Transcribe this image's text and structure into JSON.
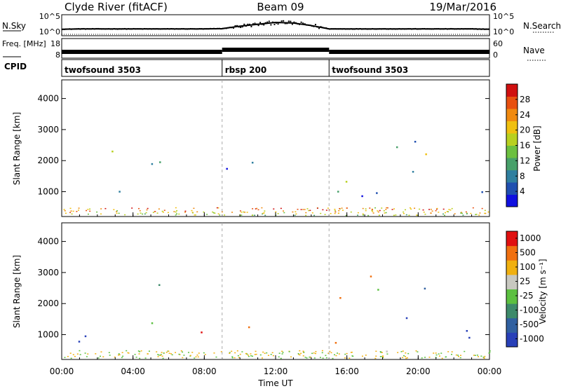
{
  "header": {
    "station": "Clyde River (fitACF)",
    "beam": "Beam 09",
    "date": "19/Mar/2016"
  },
  "chart_data": [
    {
      "type": "line",
      "panel": "sky-noise",
      "ylabel_left": "N.Sky",
      "ylabel_right": "N.Search",
      "y_ticks_left": [
        "10^5",
        "10^0"
      ],
      "y_ticks_right": [
        "10^5",
        "10^0"
      ],
      "series": [
        {
          "name": "N.Sky",
          "style": "solid-dots",
          "x_hours": [
            0,
            1,
            2,
            3,
            4,
            5,
            6,
            7,
            8,
            9,
            10,
            11,
            12,
            13,
            14,
            15,
            16,
            17,
            18,
            19,
            20,
            21,
            22,
            23,
            24
          ],
          "log10_values": [
            1.2,
            1.3,
            1.3,
            1.3,
            1.3,
            1.3,
            1.3,
            1.3,
            1.3,
            1.4,
            2.2,
            2.8,
            3.4,
            3.2,
            2.4,
            1.3,
            1.3,
            1.3,
            1.3,
            1.3,
            1.3,
            1.3,
            1.3,
            1.3,
            1.2
          ]
        },
        {
          "name": "N.Search",
          "style": "dotted",
          "x_hours": [
            0,
            24
          ],
          "log10_values": [
            0,
            0
          ]
        }
      ]
    },
    {
      "type": "line",
      "panel": "frequency",
      "ylabel_left": "Freq. [MHz]",
      "ylabel_right": "Nave",
      "y_ticks_left": [
        "18",
        "8"
      ],
      "y_ticks_right": [
        "60",
        "0"
      ],
      "series": [
        {
          "name": "Freq",
          "x_hours": [
            0,
            9,
            9,
            15,
            15,
            24
          ],
          "values": [
            10.5,
            10.5,
            12.0,
            12.0,
            10.5,
            10.5
          ]
        },
        {
          "name": "Nave",
          "style": "dotted",
          "x_hours": [
            9,
            15
          ],
          "values": [
            30,
            30
          ]
        }
      ]
    },
    {
      "type": "table",
      "panel": "cpid",
      "label": "CPID",
      "segments": [
        {
          "name": "twofsound 3503",
          "start_hour": 0,
          "end_hour": 9
        },
        {
          "name": "rbsp 200",
          "start_hour": 9,
          "end_hour": 15
        },
        {
          "name": "twofsound 3503",
          "start_hour": 15,
          "end_hour": 24
        }
      ]
    },
    {
      "type": "heatmap",
      "panel": "power",
      "ylabel": "Slant Range [km]",
      "ylim": [
        200,
        4600
      ],
      "y_ticks": [
        1000,
        2000,
        3000,
        4000
      ],
      "colorbar_label": "Power [dB]",
      "colorbar_ticks": [
        4,
        8,
        12,
        16,
        20,
        24,
        28
      ],
      "colorbar_colors": [
        "#1010e0",
        "#2050b0",
        "#2f7f9f",
        "#48a06a",
        "#6cc040",
        "#b8d020",
        "#f0c010",
        "#f08a10",
        "#e85010",
        "#d01010"
      ]
    },
    {
      "type": "heatmap",
      "panel": "velocity",
      "ylabel": "Slant Range [km]",
      "ylim": [
        200,
        4600
      ],
      "y_ticks": [
        1000,
        2000,
        3000,
        4000
      ],
      "colorbar_label": "Velocity [m s⁻¹]",
      "colorbar_ticks": [
        "1000",
        "500",
        "100",
        "25",
        "-25",
        "-100",
        "-500",
        "-1000"
      ],
      "colorbar_colors": [
        "#2840b8",
        "#3060a0",
        "#3d8a6a",
        "#5cc040",
        "#c8c8c0",
        "#f0b010",
        "#f07010",
        "#e01010"
      ],
      "xlabel": "Time UT",
      "x_ticks": [
        "00:00",
        "04:00",
        "08:00",
        "12:00",
        "16:00",
        "20:00",
        "00:00"
      ]
    }
  ]
}
